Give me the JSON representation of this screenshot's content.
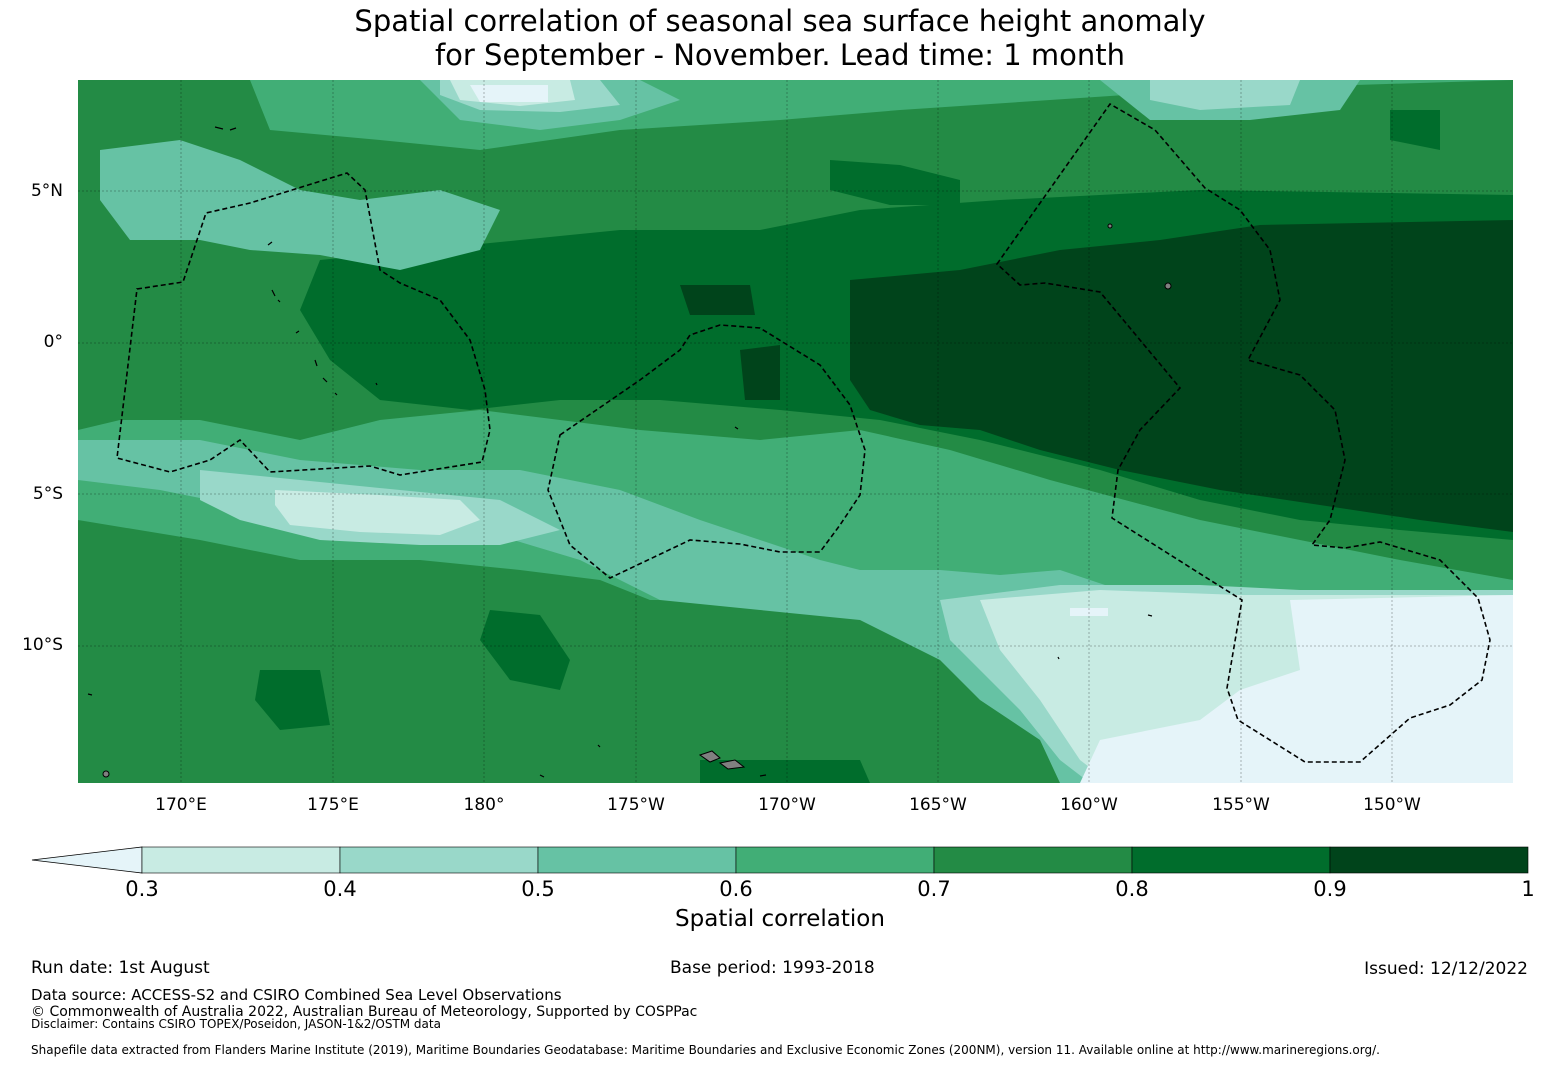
{
  "title_line1": "Spatial correlation of seasonal sea surface height anomaly",
  "title_line2": "for September - November. Lead time: 1 month",
  "lat_labels": [
    "5°N",
    "0°",
    "5°S",
    "10°S"
  ],
  "lon_labels": [
    "170°E",
    "175°E",
    "180°",
    "175°W",
    "170°W",
    "165°W",
    "160°W",
    "155°W",
    "150°W"
  ],
  "colorbar": {
    "ticks": [
      "0.3",
      "0.4",
      "0.5",
      "0.6",
      "0.7",
      "0.8",
      "0.9",
      "1"
    ],
    "label": "Spatial correlation",
    "colors": [
      "#e5f4f9",
      "#c8ebe3",
      "#99d8c9",
      "#66c2a4",
      "#41ae76",
      "#238b45",
      "#006d2c",
      "#00441b"
    ]
  },
  "footer": {
    "run_date": "Run date: 1st August",
    "base_period": "Base period: 1993-2018",
    "issued": "Issued: 12/12/2022",
    "data_source": "Data source: ACCESS-S2 and CSIRO Combined Sea Level Observations",
    "copyright": "© Commonwealth of Australia 2022, Australian Bureau of Meteorology, Supported by COSPPac",
    "disclaimer": "Disclaimer: Contains CSIRO TOPEX/Poseidon, JASON-1&2/OSTM data",
    "shapefile": "Shapefile data extracted from Flanders Marine Institute (2019), Maritime Boundaries Geodatabase: Maritime Boundaries and Exclusive Economic Zones (200NM), version 11. Available online at http://www.marineregions.org/."
  }
}
